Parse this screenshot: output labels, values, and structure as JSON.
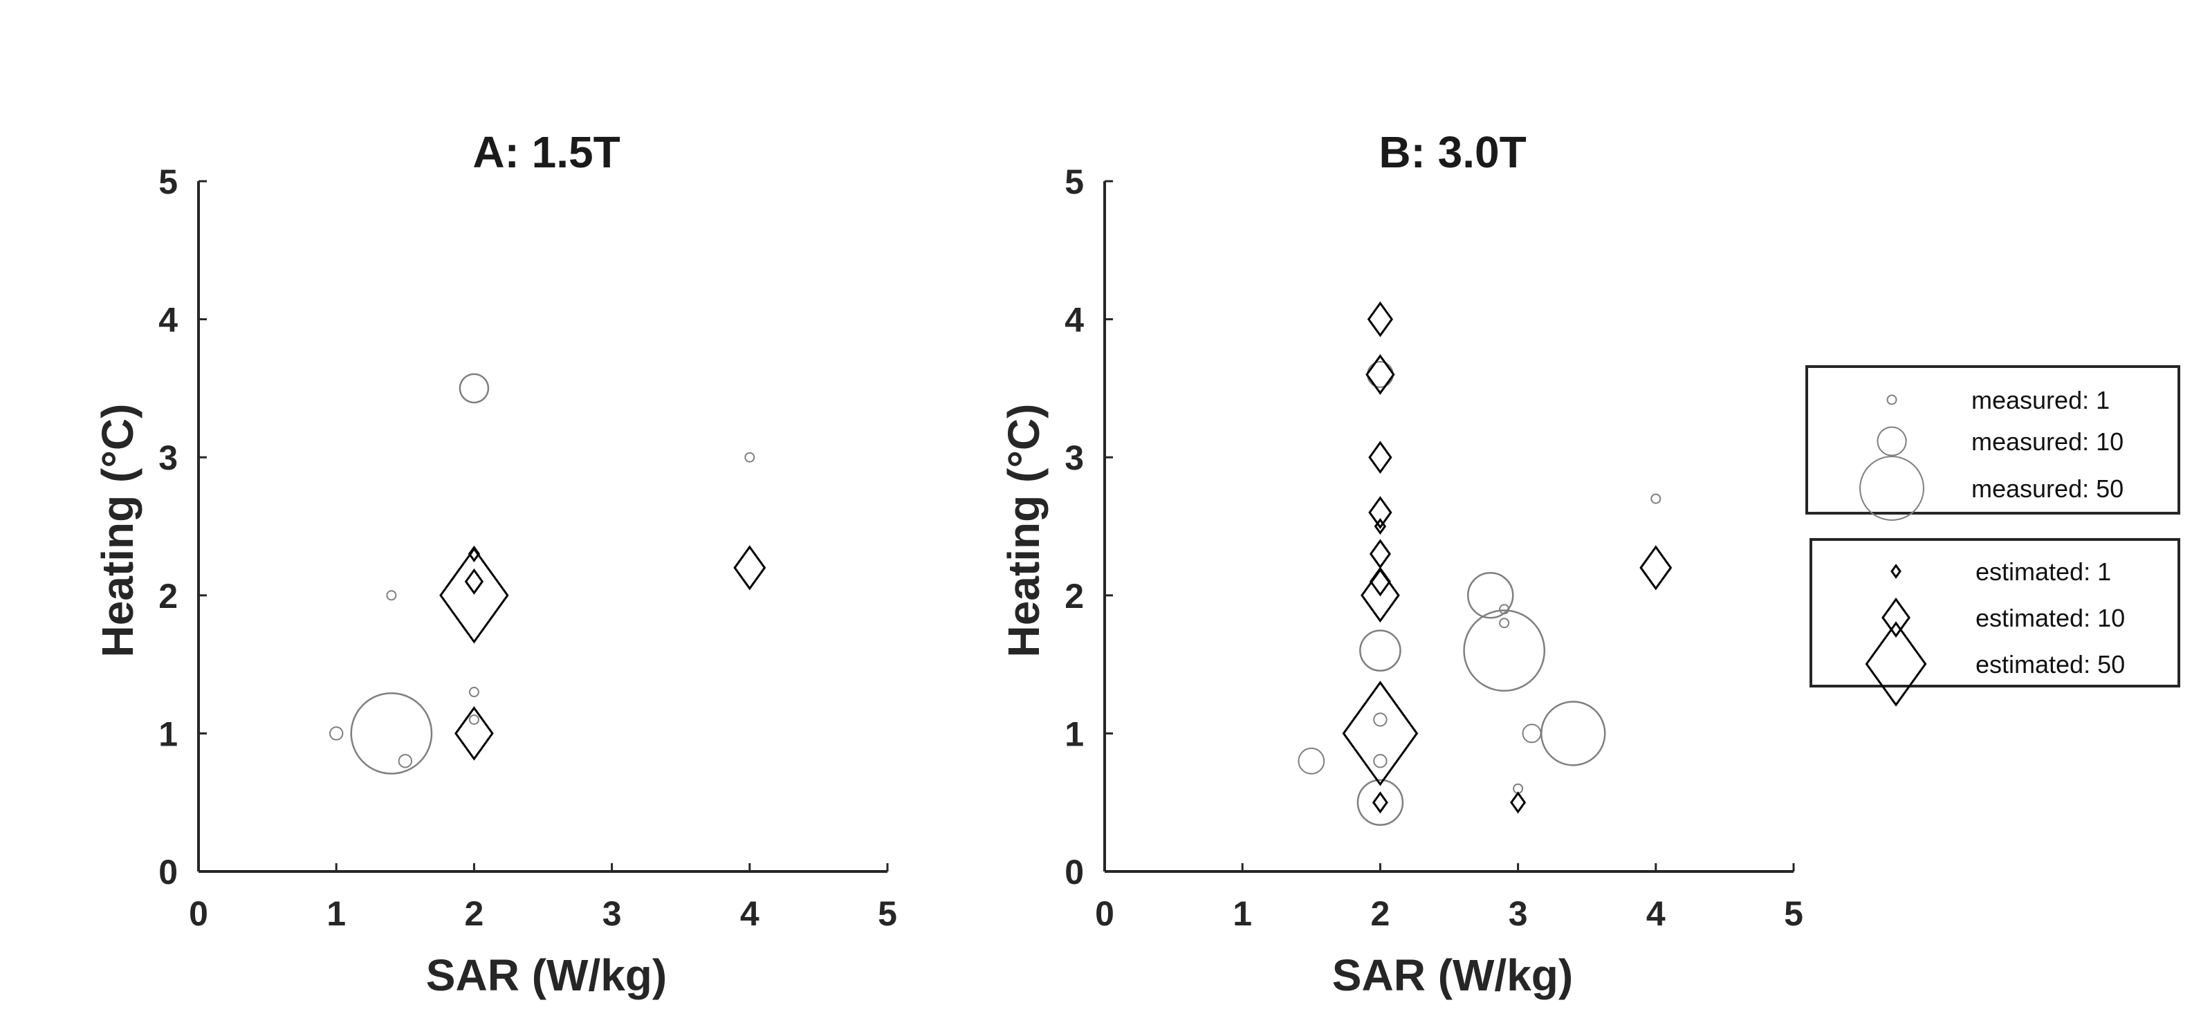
{
  "chart_data": [
    {
      "type": "scatter",
      "title": "A: 1.5T",
      "xlabel": "SAR (W/kg)",
      "ylabel": "Heating (°C)",
      "xlim": [
        0,
        5
      ],
      "ylim": [
        0,
        5
      ],
      "xticks": [
        "0",
        "1",
        "2",
        "3",
        "4",
        "5"
      ],
      "yticks": [
        "0",
        "1",
        "2",
        "3",
        "4",
        "5"
      ],
      "grid": false,
      "series": [
        {
          "marker": "circle",
          "color": "#7f7f7f",
          "points": [
            {
              "x": 2.0,
              "y": 3.5,
              "n": 10
            },
            {
              "x": 4.0,
              "y": 3.0,
              "n": 1
            },
            {
              "x": 1.4,
              "y": 2.0,
              "n": 1
            },
            {
              "x": 2.0,
              "y": 1.3,
              "n": 1
            },
            {
              "x": 2.0,
              "y": 1.1,
              "n": 1
            },
            {
              "x": 1.0,
              "y": 1.0,
              "n": 2
            },
            {
              "x": 1.4,
              "y": 1.0,
              "n": 80
            },
            {
              "x": 1.5,
              "y": 0.8,
              "n": 2
            }
          ]
        },
        {
          "marker": "diamond",
          "color": "#000000",
          "points": [
            {
              "x": 2.0,
              "y": 2.3,
              "n": 1
            },
            {
              "x": 2.0,
              "y": 2.1,
              "n": 3
            },
            {
              "x": 2.0,
              "y": 2.0,
              "n": 50
            },
            {
              "x": 2.0,
              "y": 1.0,
              "n": 15
            },
            {
              "x": 4.0,
              "y": 2.2,
              "n": 10
            }
          ]
        }
      ]
    },
    {
      "type": "scatter",
      "title": "B: 3.0T",
      "xlabel": "SAR (W/kg)",
      "ylabel": "Heating (°C)",
      "xlim": [
        0,
        5
      ],
      "ylim": [
        0,
        5
      ],
      "xticks": [
        "0",
        "1",
        "2",
        "3",
        "4",
        "5"
      ],
      "yticks": [
        "0",
        "1",
        "2",
        "3",
        "4",
        "5"
      ],
      "grid": false,
      "series": [
        {
          "marker": "circle",
          "color": "#7f7f7f",
          "points": [
            {
              "x": 2.0,
              "y": 3.6,
              "n": 8
            },
            {
              "x": 2.8,
              "y": 2.0,
              "n": 25
            },
            {
              "x": 2.9,
              "y": 1.9,
              "n": 1
            },
            {
              "x": 2.9,
              "y": 1.8,
              "n": 1
            },
            {
              "x": 2.9,
              "y": 1.6,
              "n": 80
            },
            {
              "x": 2.0,
              "y": 1.6,
              "n": 20
            },
            {
              "x": 2.0,
              "y": 1.1,
              "n": 2
            },
            {
              "x": 2.0,
              "y": 0.8,
              "n": 2
            },
            {
              "x": 2.0,
              "y": 0.5,
              "n": 25
            },
            {
              "x": 1.5,
              "y": 0.8,
              "n": 8
            },
            {
              "x": 3.1,
              "y": 1.0,
              "n": 4
            },
            {
              "x": 3.4,
              "y": 1.0,
              "n": 50
            },
            {
              "x": 3.0,
              "y": 0.6,
              "n": 1
            },
            {
              "x": 4.0,
              "y": 2.7,
              "n": 1
            }
          ]
        },
        {
          "marker": "diamond",
          "color": "#000000",
          "points": [
            {
              "x": 2.0,
              "y": 4.0,
              "n": 6
            },
            {
              "x": 2.0,
              "y": 3.6,
              "n": 8
            },
            {
              "x": 2.0,
              "y": 3.0,
              "n": 5
            },
            {
              "x": 2.0,
              "y": 2.6,
              "n": 5
            },
            {
              "x": 2.0,
              "y": 2.5,
              "n": 1
            },
            {
              "x": 2.0,
              "y": 2.3,
              "n": 4
            },
            {
              "x": 2.0,
              "y": 2.1,
              "n": 4
            },
            {
              "x": 2.0,
              "y": 2.0,
              "n": 15
            },
            {
              "x": 2.0,
              "y": 1.0,
              "n": 60
            },
            {
              "x": 2.0,
              "y": 0.5,
              "n": 2
            },
            {
              "x": 3.0,
              "y": 0.5,
              "n": 2
            },
            {
              "x": 4.0,
              "y": 2.2,
              "n": 10
            }
          ]
        }
      ]
    }
  ],
  "legends": [
    {
      "marker": "circle",
      "color": "#7f7f7f",
      "entries": [
        {
          "label": "measured: 1",
          "n": 1
        },
        {
          "label": "measured: 10",
          "n": 10
        },
        {
          "label": "measured: 50",
          "n": 50
        }
      ]
    },
    {
      "marker": "diamond",
      "color": "#000000",
      "entries": [
        {
          "label": "estimated: 1",
          "n": 1
        },
        {
          "label": "estimated: 10",
          "n": 10
        },
        {
          "label": "estimated: 50",
          "n": 50
        }
      ]
    }
  ]
}
